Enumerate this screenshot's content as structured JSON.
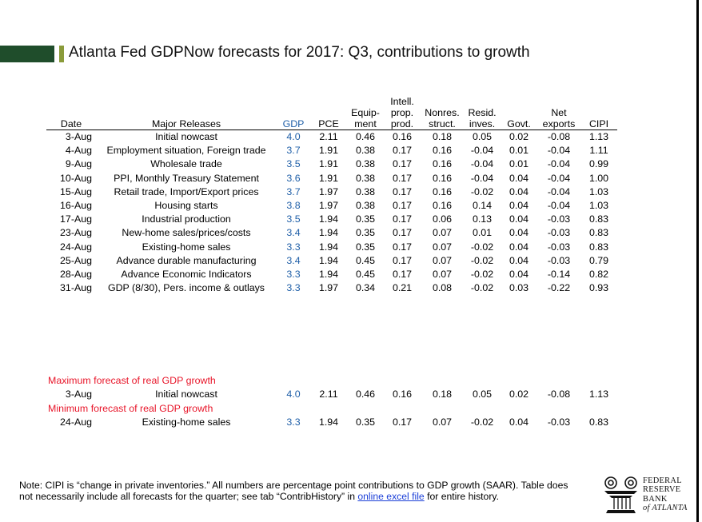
{
  "title": "Atlanta Fed GDPNow forecasts for 2017: Q3, contributions to growth",
  "colors": {
    "gdp_blue": "#1f5fa8",
    "maxmin_red": "#e8162a",
    "title_dark_green": "#1f4d2b",
    "title_accent_green": "#8a9b3a"
  },
  "table": {
    "headers": {
      "date": "Date",
      "releases": "Major Releases",
      "gdp": "GDP",
      "pce": "PCE",
      "equip_1": "Equip-",
      "equip_2": "ment",
      "intell_1": "Intell.",
      "intell_2": "prop.",
      "intell_3": "prod.",
      "nonres_1": "Nonres.",
      "nonres_2": "struct.",
      "resid_1": "Resid.",
      "resid_2": "inves.",
      "govt": "Govt.",
      "netexp_1": "Net",
      "netexp_2": "exports",
      "cipi": "CIPI"
    },
    "rows": [
      {
        "date": "3-Aug",
        "release": "Initial nowcast",
        "gdp": "4.0",
        "pce": "2.11",
        "equip": "0.46",
        "intell": "0.16",
        "nonres": "0.18",
        "resid": "0.05",
        "govt": "0.02",
        "netexp": "-0.08",
        "cipi": "1.13"
      },
      {
        "date": "4-Aug",
        "release": "Employment situation, Foreign trade",
        "gdp": "3.7",
        "pce": "1.91",
        "equip": "0.38",
        "intell": "0.17",
        "nonres": "0.16",
        "resid": "-0.04",
        "govt": "0.01",
        "netexp": "-0.04",
        "cipi": "1.11"
      },
      {
        "date": "9-Aug",
        "release": "Wholesale trade",
        "gdp": "3.5",
        "pce": "1.91",
        "equip": "0.38",
        "intell": "0.17",
        "nonres": "0.16",
        "resid": "-0.04",
        "govt": "0.01",
        "netexp": "-0.04",
        "cipi": "0.99"
      },
      {
        "date": "10-Aug",
        "release": "PPI, Monthly Treasury Statement",
        "gdp": "3.6",
        "pce": "1.91",
        "equip": "0.38",
        "intell": "0.17",
        "nonres": "0.16",
        "resid": "-0.04",
        "govt": "0.04",
        "netexp": "-0.04",
        "cipi": "1.00"
      },
      {
        "date": "15-Aug",
        "release": "Retail trade, Import/Export prices",
        "gdp": "3.7",
        "pce": "1.97",
        "equip": "0.38",
        "intell": "0.17",
        "nonres": "0.16",
        "resid": "-0.02",
        "govt": "0.04",
        "netexp": "-0.04",
        "cipi": "1.03"
      },
      {
        "date": "16-Aug",
        "release": "Housing starts",
        "gdp": "3.8",
        "pce": "1.97",
        "equip": "0.38",
        "intell": "0.17",
        "nonres": "0.16",
        "resid": "0.14",
        "govt": "0.04",
        "netexp": "-0.04",
        "cipi": "1.03"
      },
      {
        "date": "17-Aug",
        "release": "Industrial production",
        "gdp": "3.5",
        "pce": "1.94",
        "equip": "0.35",
        "intell": "0.17",
        "nonres": "0.06",
        "resid": "0.13",
        "govt": "0.04",
        "netexp": "-0.03",
        "cipi": "0.83"
      },
      {
        "date": "23-Aug",
        "release": "New-home sales/prices/costs",
        "gdp": "3.4",
        "pce": "1.94",
        "equip": "0.35",
        "intell": "0.17",
        "nonres": "0.07",
        "resid": "0.01",
        "govt": "0.04",
        "netexp": "-0.03",
        "cipi": "0.83"
      },
      {
        "date": "24-Aug",
        "release": "Existing-home sales",
        "gdp": "3.3",
        "pce": "1.94",
        "equip": "0.35",
        "intell": "0.17",
        "nonres": "0.07",
        "resid": "-0.02",
        "govt": "0.04",
        "netexp": "-0.03",
        "cipi": "0.83"
      },
      {
        "date": "25-Aug",
        "release": "Advance durable manufacturing",
        "gdp": "3.4",
        "pce": "1.94",
        "equip": "0.45",
        "intell": "0.17",
        "nonres": "0.07",
        "resid": "-0.02",
        "govt": "0.04",
        "netexp": "-0.03",
        "cipi": "0.79"
      },
      {
        "date": "28-Aug",
        "release": "Advance Economic Indicators",
        "gdp": "3.3",
        "pce": "1.94",
        "equip": "0.45",
        "intell": "0.17",
        "nonres": "0.07",
        "resid": "-0.02",
        "govt": "0.04",
        "netexp": "-0.14",
        "cipi": "0.82"
      },
      {
        "date": "31-Aug",
        "release": "GDP (8/30), Pers. income & outlays",
        "gdp": "3.3",
        "pce": "1.97",
        "equip": "0.34",
        "intell": "0.21",
        "nonres": "0.08",
        "resid": "-0.02",
        "govt": "0.03",
        "netexp": "-0.22",
        "cipi": "0.93"
      }
    ]
  },
  "maximum": {
    "label": "Maximum forecast of real GDP growth",
    "row": {
      "date": "3-Aug",
      "release": "Initial nowcast",
      "gdp": "4.0",
      "pce": "2.11",
      "equip": "0.46",
      "intell": "0.16",
      "nonres": "0.18",
      "resid": "0.05",
      "govt": "0.02",
      "netexp": "-0.08",
      "cipi": "1.13"
    }
  },
  "minimum": {
    "label": "Minimum forecast of real GDP growth",
    "row": {
      "date": "24-Aug",
      "release": "Existing-home sales",
      "gdp": "3.3",
      "pce": "1.94",
      "equip": "0.35",
      "intell": "0.17",
      "nonres": "0.07",
      "resid": "-0.02",
      "govt": "0.04",
      "netexp": "-0.03",
      "cipi": "0.83"
    }
  },
  "note": {
    "text_1": "Note:  CIPI is “change in private inventories.”  All numbers are percentage point contributions to GDP growth (SAAR). Table does not necessarily include all forecasts for the quarter; see tab “ContribHistory” in ",
    "link": "online excel file",
    "text_2": " for entire history."
  },
  "logo": {
    "line1": "FEDERAL",
    "line2": "RESERVE",
    "line3": "BANK",
    "line4": "of ATLANTA",
    "icon": "eagle-seal-icon"
  }
}
